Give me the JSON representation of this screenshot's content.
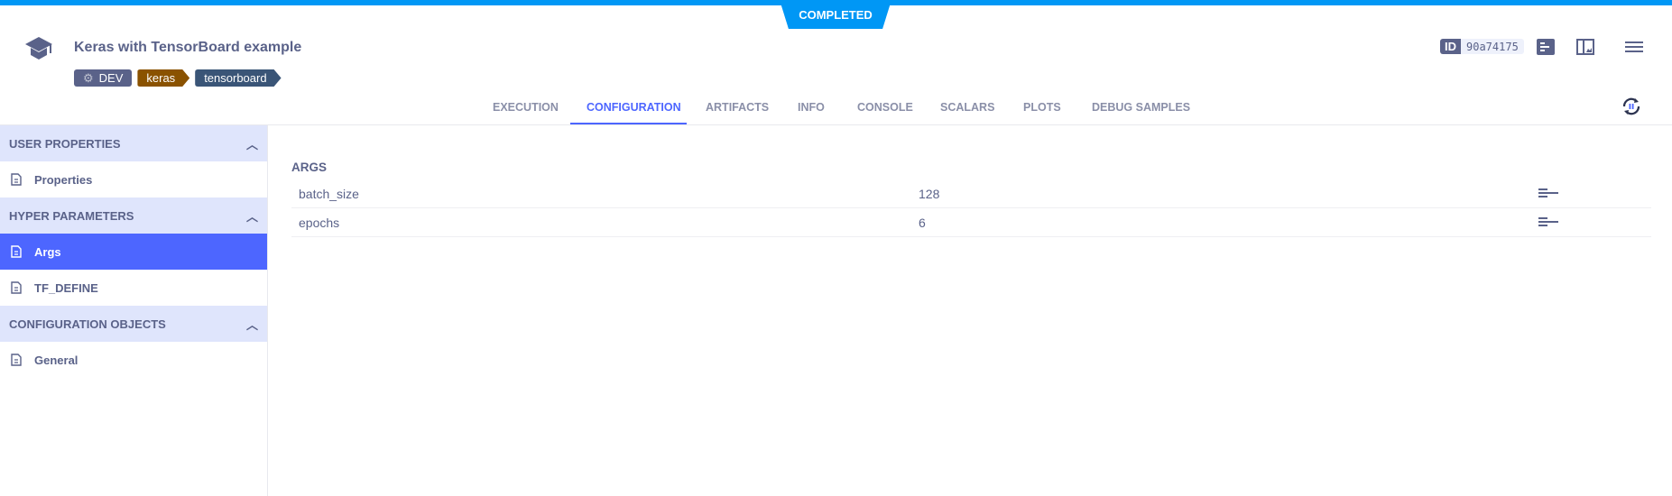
{
  "status": "COMPLETED",
  "header": {
    "title": "Keras with TensorBoard example",
    "tags": [
      {
        "label": "DEV",
        "color": "#5a6289"
      },
      {
        "label": "keras",
        "color": "#8a5200"
      },
      {
        "label": "tensorboard",
        "color": "#3a5577"
      }
    ],
    "id_label": "ID",
    "id_value": "90a74175"
  },
  "tabs": [
    "EXECUTION",
    "CONFIGURATION",
    "ARTIFACTS",
    "INFO",
    "CONSOLE",
    "SCALARS",
    "PLOTS",
    "DEBUG SAMPLES"
  ],
  "active_tab": "CONFIGURATION",
  "sidebar": {
    "sections": [
      {
        "title": "USER PROPERTIES",
        "items": [
          "Properties"
        ]
      },
      {
        "title": "HYPER PARAMETERS",
        "items": [
          "Args",
          "TF_DEFINE"
        ]
      },
      {
        "title": "CONFIGURATION OBJECTS",
        "items": [
          "General"
        ]
      }
    ],
    "active_item": "Args"
  },
  "main": {
    "section": "ARGS",
    "rows": [
      {
        "name": "batch_size",
        "value": "128"
      },
      {
        "name": "epochs",
        "value": "6"
      }
    ]
  },
  "colors": {
    "accent": "#4d66ff",
    "status": "#0097f5",
    "text": "#5a6289"
  }
}
